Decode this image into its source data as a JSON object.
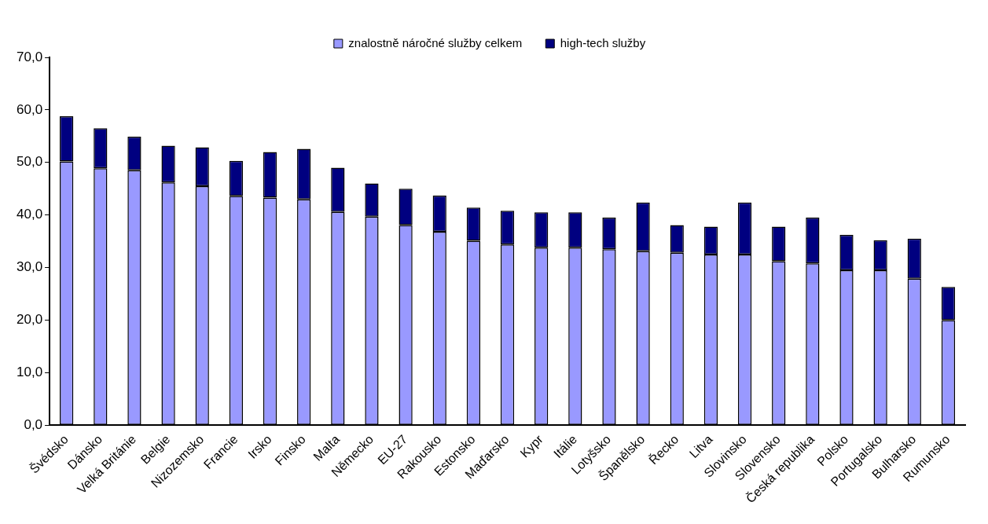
{
  "chart_data": {
    "type": "bar",
    "stacked": true,
    "legend": "top",
    "grid": false,
    "categories": [
      "Švédsko",
      "Dánsko",
      "Velká Británie",
      "Belgie",
      "Nizozemsko",
      "Francie",
      "Irsko",
      "Finsko",
      "Malta",
      "Německo",
      "EU-27",
      "Rakousko",
      "Estonsko",
      "Maďarsko",
      "Kypr",
      "Itálie",
      "Lotyšsko",
      "Španělsko",
      "Řecko",
      "Litva",
      "Slovinsko",
      "Slovensko",
      "Česká republika",
      "Polsko",
      "Portugalsko",
      "Bulharsko",
      "Rumunsko"
    ],
    "series": [
      {
        "name": "znalostně náročné služby celkem",
        "color": "#9999ff",
        "values": [
          50.2,
          48.9,
          48.5,
          46.2,
          45.5,
          43.6,
          43.3,
          43.0,
          40.6,
          39.7,
          38.1,
          36.8,
          35.1,
          34.4,
          33.8,
          33.8,
          33.5,
          33.1,
          32.8,
          32.5,
          32.5,
          31.2,
          30.8,
          29.5,
          29.5,
          27.9,
          20.0
        ]
      },
      {
        "name": "high-tech služby",
        "color": "#000080",
        "values": [
          8.6,
          7.6,
          6.4,
          7.0,
          7.4,
          6.7,
          8.7,
          9.6,
          8.4,
          6.3,
          6.9,
          6.9,
          6.3,
          6.4,
          6.7,
          6.7,
          6.0,
          9.3,
          5.3,
          5.3,
          9.9,
          6.6,
          8.7,
          6.7,
          5.7,
          7.6,
          6.3
        ]
      }
    ],
    "ylim": [
      0,
      70
    ],
    "yticks": [
      {
        "value": 0,
        "label": "0,0"
      },
      {
        "value": 10,
        "label": "10,0"
      },
      {
        "value": 20,
        "label": "20,0"
      },
      {
        "value": 30,
        "label": "30,0"
      },
      {
        "value": 40,
        "label": "40,0"
      },
      {
        "value": 50,
        "label": "50,0"
      },
      {
        "value": 60,
        "label": "60,0"
      },
      {
        "value": 70,
        "label": "70,0"
      }
    ]
  }
}
